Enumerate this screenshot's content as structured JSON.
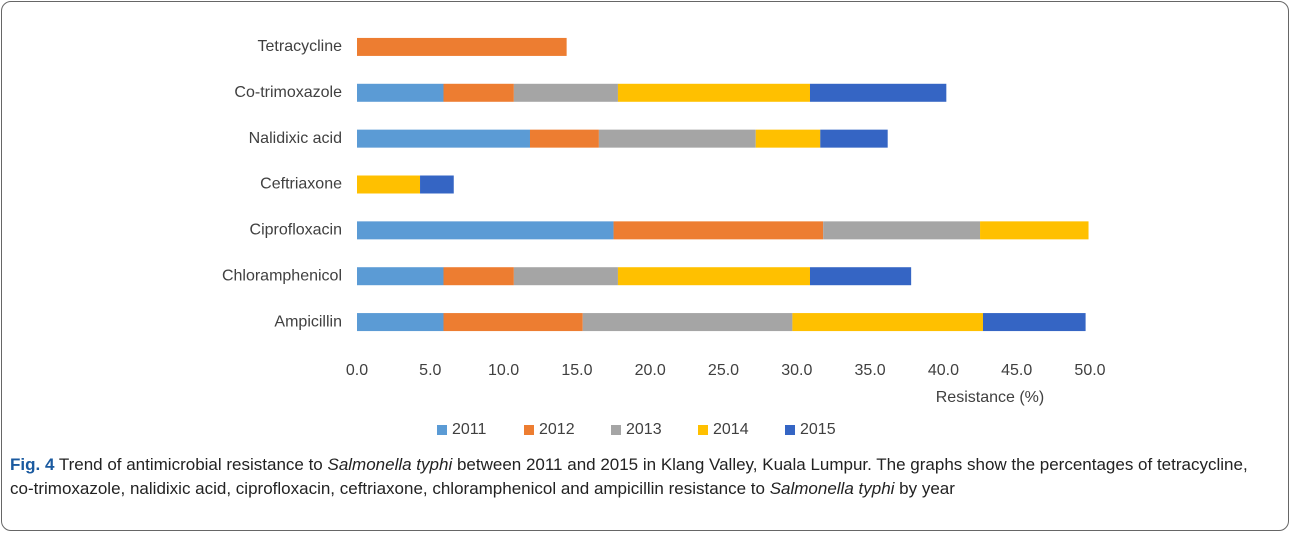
{
  "chart_data": {
    "type": "stacked_barh",
    "categories": [
      "Tetracycline",
      "Co-trimoxazole",
      "Nalidixic acid",
      "Ceftriaxone",
      "Ciprofloxacin",
      "Chloramphenicol",
      "Ampicillin"
    ],
    "series": [
      {
        "name": "2011",
        "color": "#5b9bd5",
        "values": [
          0,
          5.9,
          11.8,
          0,
          17.5,
          5.9,
          5.9
        ]
      },
      {
        "name": "2012",
        "color": "#ed7d31",
        "values": [
          14.3,
          4.8,
          4.7,
          0,
          14.3,
          4.8,
          9.5
        ]
      },
      {
        "name": "2013",
        "color": "#a5a5a5",
        "values": [
          0,
          7.1,
          10.7,
          0,
          10.7,
          7.1,
          14.3
        ]
      },
      {
        "name": "2014",
        "color": "#ffc000",
        "values": [
          0,
          13.1,
          4.4,
          4.3,
          7.4,
          13.1,
          13.0
        ]
      },
      {
        "name": "2015",
        "color": "#3565c4",
        "values": [
          0,
          9.3,
          4.6,
          2.3,
          0,
          6.9,
          7.0
        ]
      }
    ],
    "xlabel": "Resistance (%)",
    "xlim": [
      0,
      50
    ],
    "xticks": [
      {
        "value": 0,
        "label": "0.0"
      },
      {
        "value": 5,
        "label": "5.0"
      },
      {
        "value": 10,
        "label": "10.0"
      },
      {
        "value": 15,
        "label": "15.0"
      },
      {
        "value": 20,
        "label": "20.0"
      },
      {
        "value": 25,
        "label": "25.0"
      },
      {
        "value": 30,
        "label": "30.0"
      },
      {
        "value": 35,
        "label": "35.0"
      },
      {
        "value": 40,
        "label": "40.0"
      },
      {
        "value": 45,
        "label": "45.0"
      },
      {
        "value": 50,
        "label": "50.0"
      }
    ],
    "legend": "bottom"
  },
  "caption": {
    "label": "Fig. 4",
    "parts": [
      " Trend of antimicrobial resistance to ",
      "Salmonella typhi",
      " between 2011 and 2015 in Klang Valley, Kuala Lumpur. The graphs show the percentages of tetracycline, co-trimoxazole, nalidixic acid, ciprofloxacin, ceftriaxone, chloramphenicol and ampicillin resistance to ",
      "Salmonella typhi",
      " by year"
    ]
  }
}
